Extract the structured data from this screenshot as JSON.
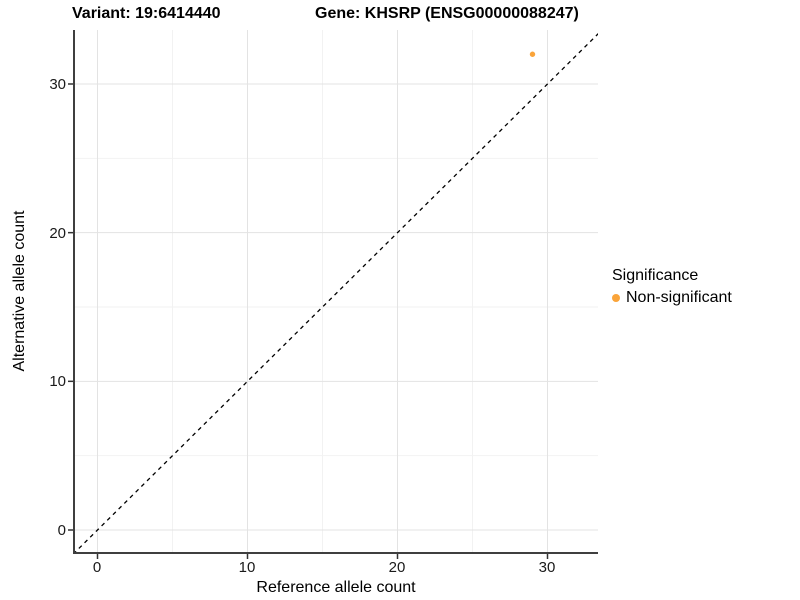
{
  "figure": {
    "title_left": "Variant: 19:6414440",
    "title_right": "Gene: KHSRP (ENSG00000088247)"
  },
  "chart_data": {
    "type": "scatter",
    "title": "Variant: 19:6414440 — Gene: KHSRP (ENSG00000088247)",
    "xlabel": "Reference allele count",
    "ylabel": "Alternative allele count",
    "x_ticks": [
      "0",
      "10",
      "20",
      "30"
    ],
    "y_ticks": [
      "0",
      "10",
      "20",
      "30"
    ],
    "xlim": [
      -1.6,
      33.6
    ],
    "ylim": [
      -1.6,
      33.6
    ],
    "grid": "major at 0/10/20/30, minor at 5/15/25, very light gray, white background",
    "series": [
      {
        "name": "Non-significant",
        "color": "#FAA43A",
        "points": [
          {
            "x": 29,
            "y": 32
          }
        ]
      }
    ],
    "reference_line": {
      "kind": "identity y = x",
      "style": "dashed",
      "color": "#000000"
    },
    "legend": {
      "title": "Significance",
      "position": "right",
      "entries": [
        {
          "label": "Non-significant",
          "color": "#FAA43A"
        }
      ]
    }
  },
  "colors": {
    "point": "#FAA43A",
    "grid_major": "#E3E3E3",
    "grid_minor": "#F2F2F2",
    "axis_line": "#3F3F3F",
    "tick_mark": "#333333",
    "text": "#000000"
  }
}
